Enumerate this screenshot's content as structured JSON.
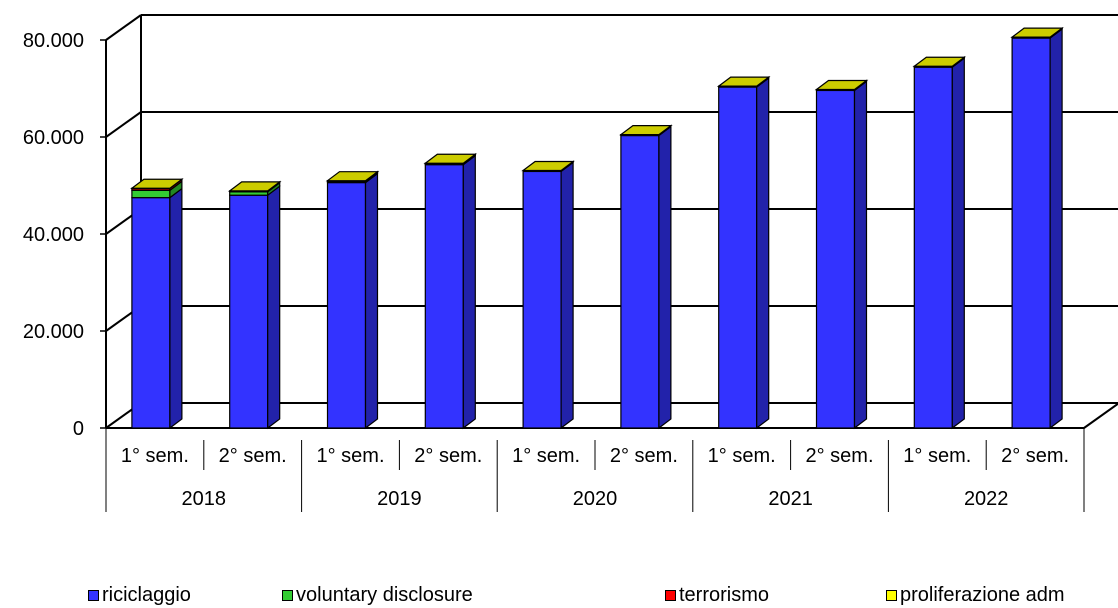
{
  "chart_data": {
    "type": "bar",
    "stacked": true,
    "style": "3d",
    "groups": [
      "2018",
      "2019",
      "2020",
      "2021",
      "2022"
    ],
    "categories": [
      "1° sem.",
      "2° sem.",
      "1° sem.",
      "2° sem.",
      "1° sem.",
      "2° sem.",
      "1° sem.",
      "2° sem.",
      "1° sem.",
      "2° sem."
    ],
    "series": [
      {
        "name": "riciclaggio",
        "color": "#3333ff",
        "side_color": "#2222aa",
        "values": [
          47500,
          48000,
          50600,
          54300,
          52900,
          60300,
          70300,
          69600,
          74400,
          80400
        ]
      },
      {
        "name": "voluntary disclosure",
        "color": "#33cc33",
        "side_color": "#228822",
        "values": [
          1500,
          700,
          200,
          100,
          0,
          0,
          0,
          0,
          0,
          0
        ]
      },
      {
        "name": "terrorismo",
        "color": "#ff0000",
        "side_color": "#aa0000",
        "values": [
          400,
          150,
          150,
          150,
          150,
          150,
          150,
          150,
          150,
          150
        ]
      },
      {
        "name": "proliferazione adm",
        "color": "#ffff00",
        "side_color": "#aaaa00",
        "values": [
          40,
          40,
          40,
          40,
          40,
          40,
          40,
          40,
          40,
          40
        ]
      }
    ],
    "yticks": [
      "0",
      "20.000",
      "40.000",
      "60.000",
      "80.000"
    ],
    "ytick_values": [
      0,
      20000,
      40000,
      60000,
      80000
    ],
    "ylim": [
      0,
      80000
    ],
    "grid": true,
    "legend_position": "bottom",
    "title": "",
    "xlabel": "",
    "ylabel": ""
  }
}
